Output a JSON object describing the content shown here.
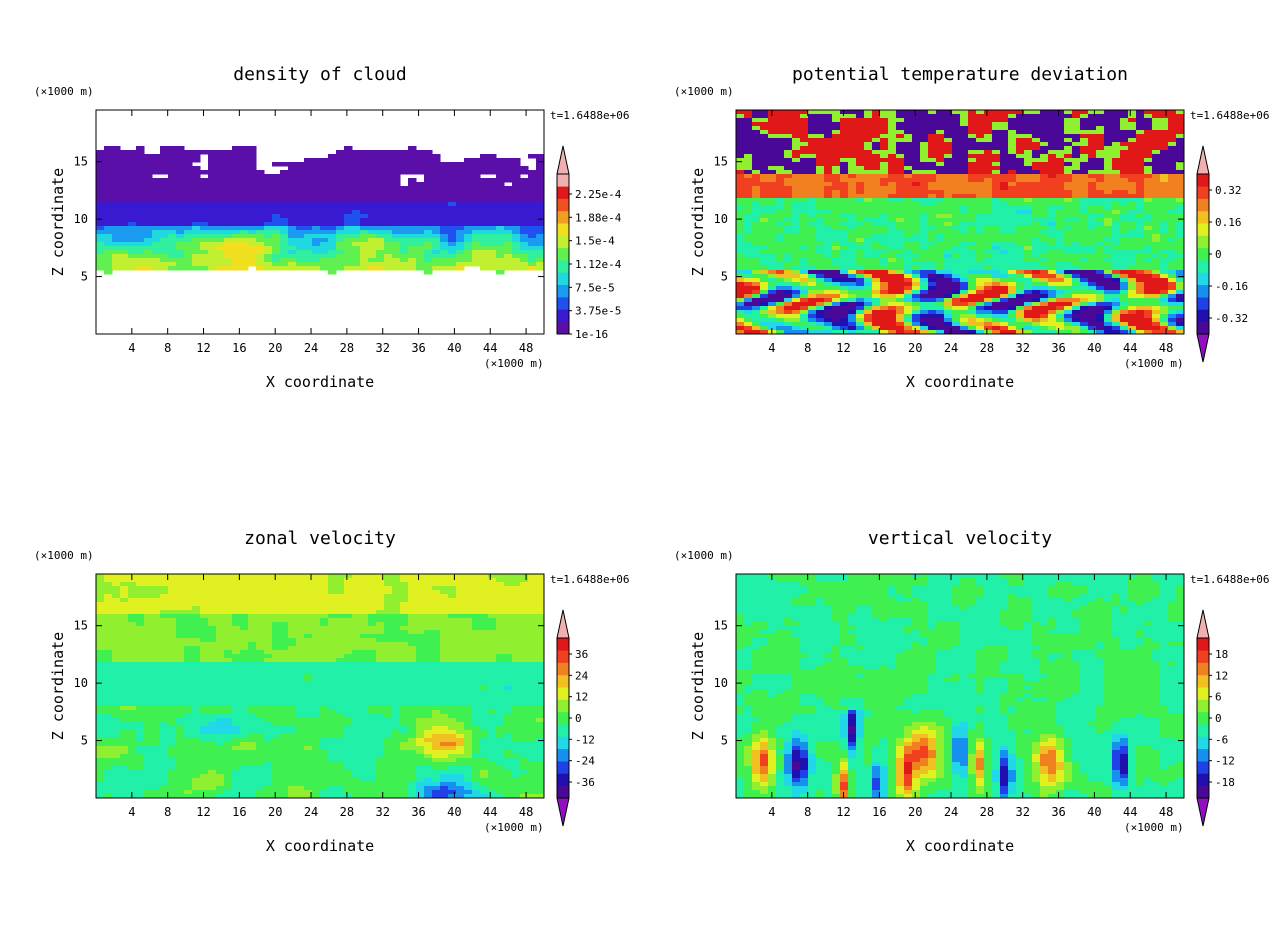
{
  "chart_data": [
    {
      "type": "heatmap",
      "title": "density of cloud",
      "xlabel": "X coordinate",
      "ylabel": "Z coordinate",
      "x_unit": "(×1000 m)",
      "y_unit": "(×1000 m)",
      "time_label": "t=1.6488e+06",
      "xlim": [
        0,
        50
      ],
      "ylim": [
        0,
        19.5
      ],
      "xticks": [
        4,
        8,
        12,
        16,
        20,
        24,
        28,
        32,
        36,
        40,
        44,
        48
      ],
      "yticks": [
        5,
        10,
        15
      ],
      "field": "cloud",
      "colorbar": {
        "labels": [
          "1e-16",
          "3.75e-5",
          "7.5e-5",
          "1.12e-4",
          "1.5e-4",
          "1.88e-4",
          "2.25e-4"
        ],
        "has_low_arrow": false,
        "has_high_arrow": true,
        "colors": [
          "#5a10a8",
          "#3a1ad0",
          "#2050f0",
          "#1a9af0",
          "#20d8e0",
          "#30f0a0",
          "#60f050",
          "#c0f030",
          "#f0e020",
          "#f0a020",
          "#f05020",
          "#e01818",
          "#f0b0b0"
        ]
      }
    },
    {
      "type": "heatmap",
      "title": "potential temperature deviation",
      "xlabel": "X coordinate",
      "ylabel": "Z coordinate",
      "x_unit": "(×1000 m)",
      "y_unit": "(×1000 m)",
      "time_label": "t=1.6488e+06",
      "xlim": [
        0,
        50
      ],
      "ylim": [
        0,
        19.5
      ],
      "xticks": [
        4,
        8,
        12,
        16,
        20,
        24,
        28,
        32,
        36,
        40,
        44,
        48
      ],
      "yticks": [
        5,
        10,
        15
      ],
      "field": "theta",
      "colorbar": {
        "labels": [
          "-0.32",
          "-0.16",
          "0",
          "0.16",
          "0.32"
        ],
        "has_low_arrow": true,
        "has_high_arrow": true,
        "colors": [
          "#4a0898",
          "#2010b0",
          "#2040e8",
          "#1890f0",
          "#20d8e8",
          "#20f0a8",
          "#40f050",
          "#90f030",
          "#e0f020",
          "#f0c020",
          "#f08020",
          "#f04020",
          "#e01818"
        ]
      }
    },
    {
      "type": "heatmap",
      "title": "zonal velocity",
      "xlabel": "X coordinate",
      "ylabel": "Z coordinate",
      "x_unit": "(×1000 m)",
      "y_unit": "(×1000 m)",
      "time_label": "t=1.6488e+06",
      "xlim": [
        0,
        50
      ],
      "ylim": [
        0,
        19.5
      ],
      "xticks": [
        4,
        8,
        12,
        16,
        20,
        24,
        28,
        32,
        36,
        40,
        44,
        48
      ],
      "yticks": [
        5,
        10,
        15
      ],
      "field": "zonal",
      "colorbar": {
        "labels": [
          "-36",
          "-24",
          "-12",
          "0",
          "12",
          "24",
          "36"
        ],
        "has_low_arrow": true,
        "has_high_arrow": true,
        "colors": [
          "#4a0898",
          "#2010b0",
          "#2040e8",
          "#1890f0",
          "#20d8e8",
          "#20f0a8",
          "#40f050",
          "#90f030",
          "#e0f020",
          "#f0c020",
          "#f08020",
          "#f04020",
          "#e01818"
        ]
      }
    },
    {
      "type": "heatmap",
      "title": "vertical velocity",
      "xlabel": "X coordinate",
      "ylabel": "Z coordinate",
      "x_unit": "(×1000 m)",
      "y_unit": "(×1000 m)",
      "time_label": "t=1.6488e+06",
      "xlim": [
        0,
        50
      ],
      "ylim": [
        0,
        19.5
      ],
      "xticks": [
        4,
        8,
        12,
        16,
        20,
        24,
        28,
        32,
        36,
        40,
        44,
        48
      ],
      "yticks": [
        5,
        10,
        15
      ],
      "field": "vertical",
      "colorbar": {
        "labels": [
          "-18",
          "-12",
          "-6",
          "0",
          "6",
          "12",
          "18"
        ],
        "has_low_arrow": true,
        "has_high_arrow": true,
        "colors": [
          "#4a0898",
          "#2010b0",
          "#2040e8",
          "#1890f0",
          "#20d8e8",
          "#20f0a8",
          "#40f050",
          "#90f030",
          "#e0f020",
          "#f0c020",
          "#f08020",
          "#f04020",
          "#e01818"
        ]
      }
    }
  ]
}
